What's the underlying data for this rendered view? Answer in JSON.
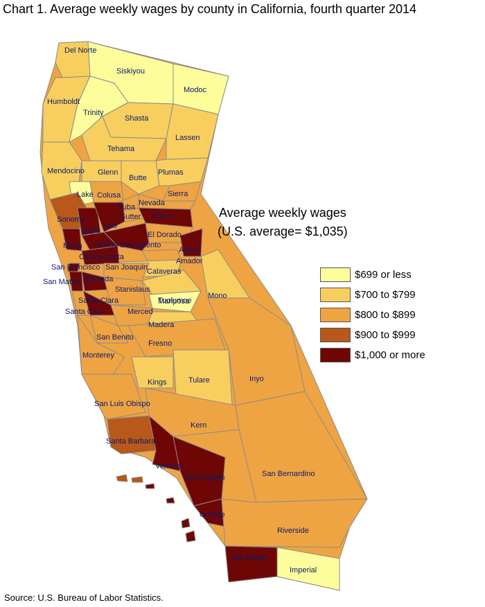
{
  "title": "Chart 1. Average weekly wages by county in California, fourth quarter 2014",
  "legend": {
    "title": "Average weekly wages",
    "subtitle": "(U.S. average= $1,035)",
    "items": [
      {
        "label": "$699 or less",
        "color": "#fdfd9b"
      },
      {
        "label": "$700 to $799",
        "color": "#f8cf5f"
      },
      {
        "label": "$800 to $899",
        "color": "#eea443"
      },
      {
        "label": "$900 to $999",
        "color": "#b8581a"
      },
      {
        "label": "$1,000 or more",
        "color": "#6f0606"
      }
    ]
  },
  "counties": [
    {
      "name": "Del Norte",
      "cls": 1
    },
    {
      "name": "Siskiyou",
      "cls": 0
    },
    {
      "name": "Modoc",
      "cls": 0
    },
    {
      "name": "Humboldt",
      "cls": 1
    },
    {
      "name": "Trinity",
      "cls": 0
    },
    {
      "name": "Shasta",
      "cls": 1
    },
    {
      "name": "Lassen",
      "cls": 1
    },
    {
      "name": "Tehama",
      "cls": 1
    },
    {
      "name": "Mendocino",
      "cls": 1
    },
    {
      "name": "Glenn",
      "cls": 1
    },
    {
      "name": "Butte",
      "cls": 1
    },
    {
      "name": "Plumas",
      "cls": 1
    },
    {
      "name": "Lake",
      "cls": 0
    },
    {
      "name": "Colusa",
      "cls": 2
    },
    {
      "name": "Sierra",
      "cls": 2
    },
    {
      "name": "Nevada",
      "cls": 2
    },
    {
      "name": "Yuba",
      "cls": 2
    },
    {
      "name": "Sutter",
      "cls": 2
    },
    {
      "name": "Placer",
      "cls": 4
    },
    {
      "name": "Sonoma",
      "cls": 3
    },
    {
      "name": "Napa",
      "cls": 4
    },
    {
      "name": "Yolo",
      "cls": 4
    },
    {
      "name": "El Dorado",
      "cls": 2
    },
    {
      "name": "Marin",
      "cls": 4
    },
    {
      "name": "Solano",
      "cls": 4
    },
    {
      "name": "Sacramento",
      "cls": 4
    },
    {
      "name": "Alpine",
      "cls": 4
    },
    {
      "name": "Amador",
      "cls": 2
    },
    {
      "name": "Contra Costa",
      "cls": 4
    },
    {
      "name": "Calaveras",
      "cls": 1
    },
    {
      "name": "San Francisco",
      "cls": 4
    },
    {
      "name": "San Joaquin",
      "cls": 2
    },
    {
      "name": "San Mateo",
      "cls": 4
    },
    {
      "name": "Alameda",
      "cls": 4
    },
    {
      "name": "Stanislaus",
      "cls": 2
    },
    {
      "name": "Tuolumne",
      "cls": 1
    },
    {
      "name": "Mono",
      "cls": 1
    },
    {
      "name": "Santa Clara",
      "cls": 4
    },
    {
      "name": "Mariposa",
      "cls": 0
    },
    {
      "name": "Santa Cruz",
      "cls": 2
    },
    {
      "name": "Merced",
      "cls": 2
    },
    {
      "name": "Madera",
      "cls": 1
    },
    {
      "name": "San Benito",
      "cls": 2
    },
    {
      "name": "Fresno",
      "cls": 2
    },
    {
      "name": "Monterey",
      "cls": 2
    },
    {
      "name": "Inyo",
      "cls": 2
    },
    {
      "name": "Kings",
      "cls": 1
    },
    {
      "name": "Tulare",
      "cls": 1
    },
    {
      "name": "San Luis Obispo",
      "cls": 2
    },
    {
      "name": "Kern",
      "cls": 2
    },
    {
      "name": "Santa Barbara",
      "cls": 3
    },
    {
      "name": "San Bernardino",
      "cls": 2
    },
    {
      "name": "Ventura",
      "cls": 4
    },
    {
      "name": "Los Angeles",
      "cls": 4
    },
    {
      "name": "Orange",
      "cls": 4
    },
    {
      "name": "Riverside",
      "cls": 2
    },
    {
      "name": "San Diego",
      "cls": 4
    },
    {
      "name": "Imperial",
      "cls": 0
    }
  ],
  "source": "Source: U.S. Bureau of Labor Statistics."
}
